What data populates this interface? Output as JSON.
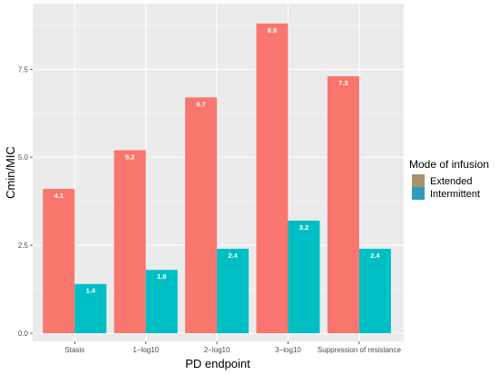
{
  "chart_data": {
    "type": "bar",
    "title": "",
    "xlabel": "PD endpoint",
    "ylabel": "Cmin/MIC",
    "categories": [
      "Stasis",
      "1−log10",
      "2−log10",
      "3−log10",
      "Suppression of resistance"
    ],
    "series": [
      {
        "name": "Extended",
        "color": "#f8766d",
        "values": [
          4.1,
          5.2,
          6.7,
          8.8,
          7.3
        ],
        "labels": [
          "4.1",
          "5.2",
          "6.7",
          "8.8",
          "7.3"
        ]
      },
      {
        "name": "Intermittent",
        "color": "#00bfc4",
        "values": [
          1.4,
          1.8,
          2.4,
          3.2,
          2.4
        ],
        "labels": [
          "1.4",
          "1.8",
          "2.4",
          "3.2",
          "2.4"
        ]
      }
    ],
    "ylim": [
      0,
      8.9
    ],
    "yticks": [
      0.0,
      2.5,
      5.0,
      7.5
    ],
    "ytick_labels": [
      "0.0",
      "2.5",
      "5.0",
      "7.5"
    ],
    "grid": true,
    "legend": {
      "title": "Mode of infusion",
      "position": "right",
      "entries": [
        {
          "label": "Extended",
          "swatch": "#a8906a"
        },
        {
          "label": "Intermittent",
          "swatch": "#2f9bbf"
        }
      ]
    },
    "panel_background": "#ebebeb"
  }
}
